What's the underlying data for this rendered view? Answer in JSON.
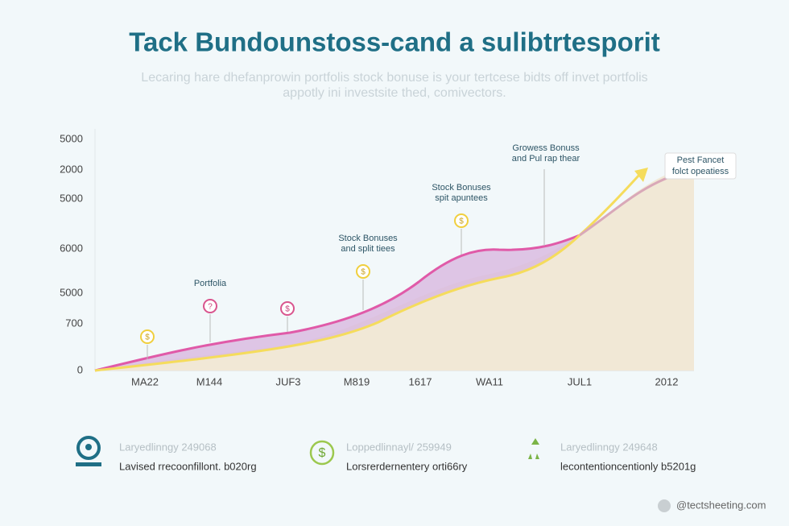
{
  "header": {
    "title": "Tack Bundounstoss-cand a sulibtrtesporit",
    "subtitle_lines": [
      "Lecaring hare dhefanprowin portfolis stock bonuse is your tertcese bidts off invet portfolis",
      "appotly ini investsite thed, comivectors."
    ]
  },
  "axis": {
    "y_labels": [
      "5000",
      "2000",
      "5000",
      "6000",
      "5000",
      "700",
      "0"
    ],
    "x_labels": [
      "MA22",
      "M144",
      "JUF3",
      "M819",
      "1617",
      "WA11",
      "JUL1",
      "2012"
    ]
  },
  "annotations": [
    {
      "lines": [
        "Portfolia"
      ]
    },
    {
      "lines": [
        "Stock Bonuses",
        "and split tiees"
      ]
    },
    {
      "lines": [
        "Stock Bonuses",
        "spit apuntees"
      ]
    },
    {
      "lines": [
        "Growess Bonuss",
        "and Pul rap thear"
      ]
    },
    {
      "lines": [
        "Pest Fancet",
        "folct opeatiess"
      ]
    }
  ],
  "footer": [
    {
      "heading": "Laryedlinngy 249068",
      "text": "Lavised rrecoonfillont. b020rg"
    },
    {
      "heading": "Loppedlinnayl/ 259949",
      "text": "Lorsrerdernentery orti66ry"
    },
    {
      "heading": "Laryedlinngy 249648",
      "text": "lecontentioncentionly b5201g"
    }
  ],
  "watermark": "@tectsheeting.com"
}
